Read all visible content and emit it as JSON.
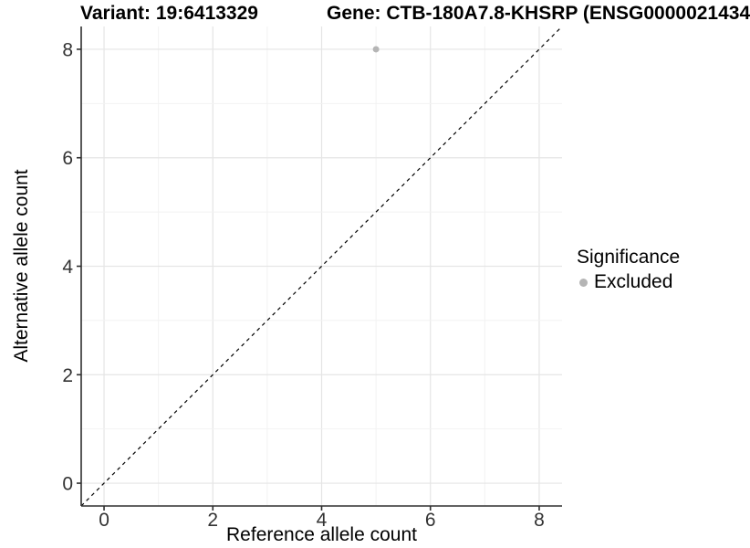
{
  "header": {
    "variant_title": "Variant: 19:6413329",
    "gene_title": "Gene: CTB-180A7.8-KHSRP (ENSG0000021434"
  },
  "axes": {
    "x_title": "Reference allele count",
    "y_title": "Alternative allele count"
  },
  "legend": {
    "title": "Significance",
    "items": [
      {
        "label": "Excluded",
        "marker_color": "#b5b5b5"
      }
    ]
  },
  "colors": {
    "background": "#ffffff",
    "axis_line": "#2f2f2f",
    "tick_mark": "#2f2f2f",
    "tick_label": "#333333",
    "grid_major": "#e5e5e5",
    "grid_minor": "#f2f2f2",
    "reference_line": "#000000",
    "point": "#b5b5b5"
  },
  "chart_data": {
    "type": "scatter",
    "title": "Variant: 19:6413329   Gene: CTB-180A7.8-KHSRP (ENSG0000021434",
    "xlabel": "Reference allele count",
    "ylabel": "Alternative allele count",
    "xlim": [
      -0.42,
      8.42
    ],
    "ylim": [
      -0.42,
      8.42
    ],
    "x_ticks": [
      0,
      2,
      4,
      6,
      8
    ],
    "y_ticks": [
      0,
      2,
      4,
      6,
      8
    ],
    "grid_lines_every": 1,
    "grid": "major at even integers, minor at odd integers",
    "legend_position": "right",
    "series": [
      {
        "name": "Excluded",
        "color": "#b5b5b5",
        "points": [
          {
            "x": 5,
            "y": 8
          }
        ]
      }
    ],
    "reference_line": {
      "kind": "identity y=x",
      "style": "dashed",
      "color": "#000000"
    }
  }
}
